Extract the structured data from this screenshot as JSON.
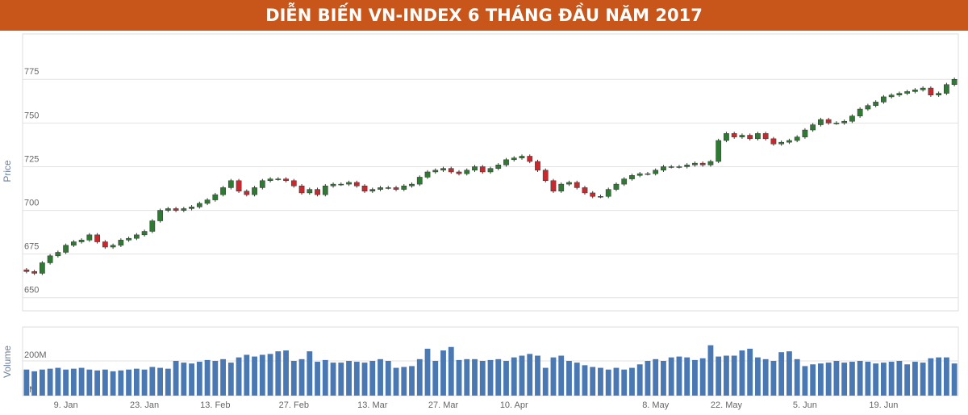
{
  "chart_data": {
    "type": "candlestick",
    "title": "DIỄN BIẾN VN-INDEX 6 THÁNG ĐẦU NĂM 2017",
    "ylabel": "Price",
    "up_color": "#2f7a32",
    "down_color": "#c62a2f",
    "grid": true,
    "ylim": [
      642.5,
      801
    ],
    "yticks": [
      650,
      675,
      700,
      725,
      750,
      775
    ],
    "categories": [
      null,
      null,
      null,
      null,
      null,
      "9. Jan",
      null,
      null,
      null,
      null,
      null,
      null,
      null,
      null,
      null,
      "23. Jan",
      null,
      null,
      null,
      null,
      null,
      null,
      null,
      null,
      "13. Feb",
      null,
      null,
      null,
      null,
      null,
      null,
      null,
      null,
      null,
      "27. Feb",
      null,
      null,
      null,
      null,
      null,
      null,
      null,
      null,
      null,
      "13. Mar",
      null,
      null,
      null,
      null,
      null,
      null,
      null,
      null,
      "27. Mar",
      null,
      null,
      null,
      null,
      null,
      null,
      null,
      null,
      "10. Apr",
      null,
      null,
      null,
      null,
      null,
      null,
      null,
      null,
      null,
      null,
      null,
      null,
      null,
      null,
      null,
      null,
      null,
      "8. May",
      null,
      null,
      null,
      null,
      null,
      null,
      null,
      null,
      "22. May",
      null,
      null,
      null,
      null,
      null,
      null,
      null,
      null,
      null,
      "5. Jun",
      null,
      null,
      null,
      null,
      null,
      null,
      null,
      null,
      null,
      "19. Jun",
      null,
      null,
      null,
      null,
      null,
      null,
      null,
      null,
      null
    ],
    "open": [
      666,
      665,
      664,
      670,
      674,
      676,
      680,
      682,
      683,
      686,
      682,
      679,
      680,
      683,
      684,
      686,
      688,
      694,
      700,
      701,
      700,
      701,
      702,
      704,
      706,
      709,
      713,
      717,
      711,
      709,
      713,
      717,
      718,
      718,
      717,
      714,
      710,
      712,
      709,
      714,
      715,
      715,
      716,
      714,
      711,
      712,
      713,
      713,
      712,
      714,
      715,
      719,
      722,
      723,
      724,
      722,
      721,
      723,
      725,
      722,
      724,
      726,
      729,
      730,
      731,
      728,
      723,
      717,
      711,
      715,
      716,
      713,
      710,
      708,
      708,
      712,
      715,
      718,
      720,
      721,
      721,
      723,
      725,
      725,
      725,
      726,
      727,
      726,
      728,
      740,
      744,
      742,
      743,
      741,
      744,
      741,
      738,
      739,
      740,
      742,
      746,
      749,
      752,
      750,
      750,
      751,
      754,
      758,
      760,
      762,
      765,
      766,
      767,
      768,
      769,
      770,
      766,
      767,
      772
    ],
    "high": [
      667,
      666,
      671,
      675,
      677,
      681,
      683,
      684,
      687,
      687,
      683,
      681,
      684,
      685,
      687,
      689,
      695,
      701,
      702,
      702,
      702,
      703,
      705,
      707,
      710,
      714,
      718,
      718,
      712,
      714,
      718,
      719,
      719,
      719,
      718,
      715,
      713,
      713,
      715,
      716,
      716,
      717,
      717,
      715,
      713,
      714,
      714,
      714,
      715,
      716,
      720,
      723,
      724,
      725,
      725,
      723,
      724,
      726,
      726,
      725,
      727,
      730,
      731,
      732,
      732,
      729,
      724,
      718,
      716,
      717,
      717,
      714,
      711,
      709,
      713,
      716,
      719,
      721,
      722,
      722,
      724,
      726,
      726,
      726,
      727,
      728,
      728,
      729,
      741,
      745,
      745,
      744,
      744,
      745,
      745,
      742,
      740,
      741,
      743,
      747,
      750,
      753,
      753,
      751,
      752,
      755,
      759,
      761,
      763,
      766,
      767,
      768,
      769,
      770,
      771,
      771,
      768,
      773,
      776
    ],
    "low": [
      664,
      663,
      663,
      669,
      673,
      675,
      679,
      681,
      682,
      681,
      678,
      678,
      679,
      682,
      683,
      685,
      687,
      693,
      699,
      699,
      699,
      700,
      701,
      703,
      705,
      708,
      712,
      710,
      708,
      708,
      712,
      716,
      717,
      716,
      713,
      709,
      709,
      708,
      708,
      713,
      714,
      714,
      713,
      710,
      710,
      711,
      712,
      711,
      711,
      713,
      714,
      718,
      721,
      722,
      721,
      720,
      720,
      722,
      721,
      721,
      723,
      725,
      728,
      729,
      727,
      722,
      716,
      710,
      710,
      714,
      712,
      709,
      707,
      707,
      707,
      711,
      714,
      717,
      719,
      720,
      720,
      722,
      724,
      724,
      724,
      725,
      725,
      725,
      727,
      739,
      741,
      741,
      740,
      740,
      740,
      737,
      737,
      738,
      739,
      741,
      745,
      748,
      749,
      749,
      749,
      750,
      753,
      757,
      759,
      761,
      764,
      765,
      766,
      767,
      768,
      765,
      765,
      766,
      771
    ],
    "close": [
      665,
      664,
      670,
      674,
      676,
      680,
      682,
      683,
      686,
      682,
      679,
      680,
      683,
      684,
      686,
      688,
      694,
      700,
      701,
      700,
      701,
      702,
      704,
      706,
      709,
      713,
      717,
      711,
      709,
      713,
      717,
      718,
      718,
      717,
      714,
      710,
      712,
      709,
      714,
      715,
      715,
      716,
      714,
      711,
      712,
      713,
      713,
      712,
      714,
      715,
      719,
      722,
      723,
      724,
      722,
      721,
      723,
      725,
      722,
      724,
      726,
      729,
      730,
      731,
      728,
      723,
      717,
      711,
      715,
      716,
      713,
      710,
      708,
      708,
      712,
      715,
      718,
      720,
      721,
      721,
      723,
      725,
      725,
      725,
      726,
      727,
      726,
      728,
      740,
      744,
      742,
      743,
      741,
      744,
      741,
      738,
      739,
      740,
      742,
      746,
      749,
      752,
      750,
      750,
      751,
      754,
      758,
      760,
      762,
      765,
      766,
      767,
      768,
      769,
      770,
      766,
      767,
      772,
      775
    ],
    "volume": {
      "ylabel": "Volume",
      "color": "#4a78b2",
      "ylim": [
        0,
        395
      ],
      "yticks": [
        {
          "value": 0,
          "label": "0M"
        },
        {
          "value": 200,
          "label": "200M"
        }
      ],
      "values": [
        150,
        140,
        150,
        155,
        160,
        150,
        155,
        160,
        150,
        145,
        150,
        140,
        145,
        150,
        155,
        150,
        165,
        160,
        155,
        200,
        190,
        185,
        195,
        205,
        200,
        210,
        190,
        220,
        235,
        225,
        235,
        240,
        255,
        260,
        200,
        210,
        255,
        195,
        205,
        190,
        190,
        200,
        195,
        190,
        200,
        210,
        200,
        160,
        165,
        170,
        210,
        270,
        200,
        260,
        280,
        205,
        210,
        210,
        200,
        205,
        210,
        200,
        220,
        230,
        240,
        230,
        160,
        220,
        230,
        200,
        190,
        175,
        165,
        160,
        150,
        160,
        150,
        160,
        180,
        200,
        210,
        200,
        220,
        225,
        220,
        205,
        215,
        290,
        225,
        230,
        230,
        260,
        270,
        220,
        210,
        200,
        250,
        255,
        210,
        170,
        180,
        185,
        190,
        200,
        190,
        195,
        200,
        195,
        185,
        190,
        195,
        200,
        180,
        195,
        190,
        215,
        220,
        220,
        185
      ]
    }
  }
}
